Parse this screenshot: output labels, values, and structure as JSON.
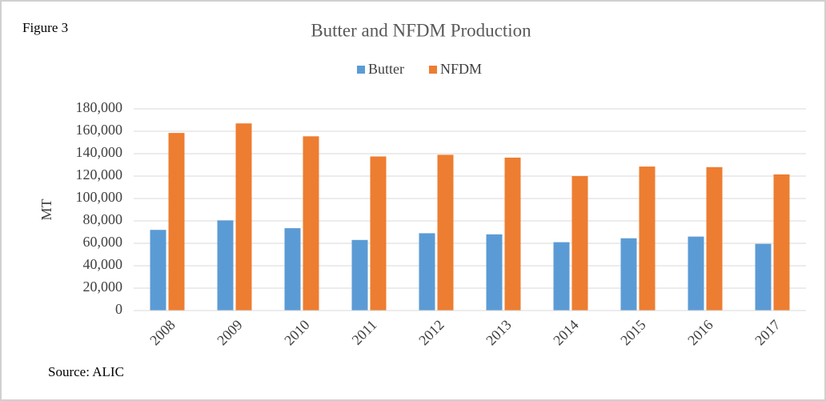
{
  "figure_label": "Figure 3",
  "source": "Source: ALIC",
  "chart_data": {
    "type": "bar",
    "title": "Butter and NFDM Production",
    "y_label": "MT",
    "categories": [
      "2008",
      "2009",
      "2010",
      "2011",
      "2012",
      "2013",
      "2014",
      "2015",
      "2016",
      "2017"
    ],
    "series": [
      {
        "name": "Butter",
        "color": "#5b9bd5",
        "values": [
          72000,
          80500,
          73500,
          63000,
          69000,
          68000,
          61000,
          64500,
          66000,
          59500
        ]
      },
      {
        "name": "NFDM",
        "color": "#ed7d31",
        "values": [
          158500,
          167000,
          155500,
          137500,
          139000,
          136500,
          120000,
          128500,
          128000,
          121500
        ]
      }
    ],
    "ylim": [
      0,
      180000
    ],
    "yticks": [
      0,
      {
        "value": 20000,
        "label": "20,000"
      },
      {
        "value": 40000,
        "label": "40,000"
      },
      {
        "value": 60000,
        "label": "60,000"
      },
      {
        "value": 80000,
        "label": "80,000"
      },
      {
        "value": 100000,
        "label": "100,000"
      },
      {
        "value": 120000,
        "label": "120,000"
      },
      {
        "value": 140000,
        "label": "140,000"
      },
      {
        "value": 160000,
        "label": "160,000"
      },
      {
        "value": 180000,
        "label": "180,000"
      }
    ],
    "grid": true,
    "legend": "top"
  }
}
